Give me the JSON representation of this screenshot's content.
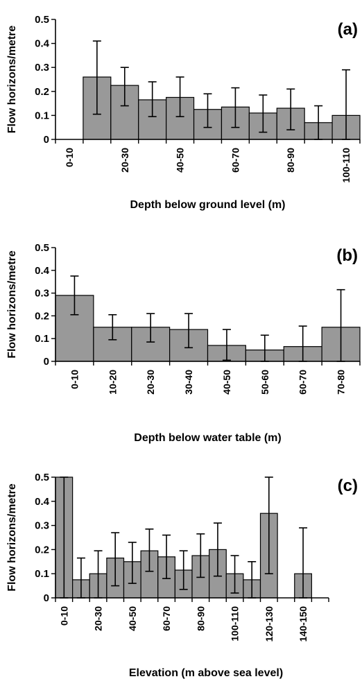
{
  "chart_data": [
    {
      "type": "bar",
      "panel_label": "(a)",
      "xlabel": "Depth below ground level (m)",
      "ylabel": "Flow horizons/metre",
      "ylim": [
        0,
        0.5
      ],
      "yticks": [
        "0",
        "0.1",
        "0.2",
        "0.3",
        "0.4",
        "0.5"
      ],
      "categories": [
        "0-10",
        "10-20",
        "20-30",
        "30-40",
        "40-50",
        "50-60",
        "60-70",
        "70-80",
        "80-90",
        "90-100",
        "100-110"
      ],
      "category_labels_shown": [
        "0-10",
        "",
        "20-30",
        "",
        "40-50",
        "",
        "60-70",
        "",
        "80-90",
        "",
        "100-110"
      ],
      "values": [
        0,
        0.26,
        0.225,
        0.165,
        0.175,
        0.125,
        0.135,
        0.11,
        0.13,
        0.07,
        0.1
      ],
      "error_upper": [
        null,
        0.41,
        0.3,
        0.24,
        0.26,
        0.19,
        0.215,
        0.185,
        0.21,
        0.14,
        0.29
      ],
      "error_lower": [
        null,
        0.105,
        0.14,
        0.095,
        0.095,
        0.05,
        0.05,
        0.03,
        0.04,
        0.0,
        0.0
      ],
      "bar_color": "#999999",
      "grid": false
    },
    {
      "type": "bar",
      "panel_label": "(b)",
      "xlabel": "Depth below water table (m)",
      "ylabel": "Flow horizons/metre",
      "ylim": [
        0,
        0.5
      ],
      "yticks": [
        "0",
        "0.1",
        "0.2",
        "0.3",
        "0.4",
        "0.5"
      ],
      "categories": [
        "0-10",
        "10-20",
        "20-30",
        "30-40",
        "40-50",
        "50-60",
        "60-70",
        "70-80"
      ],
      "category_labels_shown": [
        "0-10",
        "10-20",
        "20-30",
        "30-40",
        "40-50",
        "50-60",
        "60-70",
        "70-80"
      ],
      "values": [
        0.29,
        0.15,
        0.15,
        0.14,
        0.07,
        0.05,
        0.065,
        0.15
      ],
      "error_upper": [
        0.375,
        0.205,
        0.21,
        0.21,
        0.14,
        0.115,
        0.155,
        0.315
      ],
      "error_lower": [
        0.205,
        0.095,
        0.085,
        0.06,
        0.005,
        0.0,
        0.0,
        0.0
      ],
      "bar_color": "#999999",
      "grid": false
    },
    {
      "type": "bar",
      "panel_label": "(c)",
      "xlabel": "Elevation (m above sea level)",
      "ylabel": "Flow horizons/metre",
      "ylim": [
        0,
        0.5
      ],
      "yticks": [
        "0",
        "0.1",
        "0.2",
        "0.3",
        "0.4",
        "0.5"
      ],
      "categories": [
        "0-10",
        "10-20",
        "20-30",
        "30-40",
        "40-50",
        "50-60",
        "60-70",
        "70-80",
        "80-90",
        "90-100",
        "100-110",
        "110-120",
        "120-130",
        "130-140",
        "140-150",
        "150-160"
      ],
      "category_labels_shown": [
        "0-10",
        "",
        "20-30",
        "",
        "40-50",
        "",
        "60-70",
        "",
        "80-90",
        "",
        "100-110",
        "",
        "120-130",
        "",
        "140-150",
        ""
      ],
      "values": [
        0.5,
        0.075,
        0.1,
        0.165,
        0.15,
        0.195,
        0.17,
        0.115,
        0.175,
        0.2,
        0.1,
        0.075,
        0.35,
        0,
        0.1,
        0
      ],
      "error_upper": [
        0.5,
        0.165,
        0.195,
        0.27,
        0.23,
        0.285,
        0.26,
        0.195,
        0.265,
        0.31,
        0.175,
        0.15,
        0.5,
        null,
        0.29,
        null
      ],
      "error_lower": [
        0.0,
        0.0,
        0.0,
        0.05,
        0.06,
        0.11,
        0.08,
        0.035,
        0.085,
        0.09,
        0.02,
        0.0,
        0.1,
        null,
        0.0,
        null
      ],
      "bar_color": "#999999",
      "grid": false
    }
  ]
}
